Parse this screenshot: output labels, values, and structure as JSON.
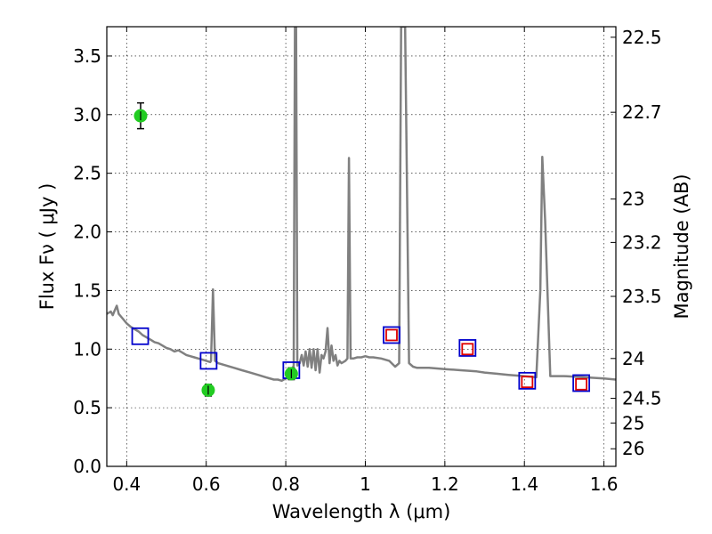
{
  "chart_data": {
    "type": "scatter",
    "xlabel": "Wavelength  λ (μm)",
    "ylabel": "Flux  Fν  ( μJy )",
    "ylabel_right": "Magnitude (AB)",
    "xlim": [
      0.35,
      1.63
    ],
    "ylim": [
      0.0,
      3.75
    ],
    "grid": true,
    "x_ticks": [
      0.4,
      0.6,
      0.8,
      1.0,
      1.2,
      1.4,
      1.6
    ],
    "x_tick_labels": [
      "0.4",
      "0.6",
      "0.8",
      "1",
      "1.2",
      "1.4",
      "1.6"
    ],
    "y_ticks": [
      0.0,
      0.5,
      1.0,
      1.5,
      2.0,
      2.5,
      3.0,
      3.5
    ],
    "y_tick_labels": [
      "0.0",
      "0.5",
      "1.0",
      "1.5",
      "2.0",
      "2.5",
      "3.0",
      "3.5"
    ],
    "right_ticks": [
      {
        "label": "22.5",
        "flux": 3.66
      },
      {
        "label": "22.7",
        "flux": 3.02
      },
      {
        "label": "23",
        "flux": 2.28
      },
      {
        "label": "23.2",
        "flux": 1.91
      },
      {
        "label": "23.5",
        "flux": 1.45
      },
      {
        "label": "24",
        "flux": 0.92
      },
      {
        "label": "24.5",
        "flux": 0.58
      },
      {
        "label": "25",
        "flux": 0.37
      },
      {
        "label": "26",
        "flux": 0.15
      }
    ],
    "series": [
      {
        "kind": "line",
        "color": "#808080",
        "points": [
          [
            0.35,
            1.3
          ],
          [
            0.36,
            1.32
          ],
          [
            0.365,
            1.29
          ],
          [
            0.37,
            1.33
          ],
          [
            0.375,
            1.37
          ],
          [
            0.38,
            1.3
          ],
          [
            0.39,
            1.26
          ],
          [
            0.4,
            1.22
          ],
          [
            0.41,
            1.19
          ],
          [
            0.42,
            1.17
          ],
          [
            0.43,
            1.15
          ],
          [
            0.44,
            1.12
          ],
          [
            0.45,
            1.1
          ],
          [
            0.46,
            1.08
          ],
          [
            0.47,
            1.06
          ],
          [
            0.48,
            1.05
          ],
          [
            0.49,
            1.03
          ],
          [
            0.5,
            1.01
          ],
          [
            0.51,
            1.0
          ],
          [
            0.52,
            0.98
          ],
          [
            0.53,
            0.99
          ],
          [
            0.54,
            0.97
          ],
          [
            0.55,
            0.95
          ],
          [
            0.56,
            0.94
          ],
          [
            0.57,
            0.93
          ],
          [
            0.58,
            0.92
          ],
          [
            0.59,
            0.91
          ],
          [
            0.6,
            0.9
          ],
          [
            0.61,
            0.89
          ],
          [
            0.612,
            0.9
          ],
          [
            0.617,
            1.51
          ],
          [
            0.622,
            0.9
          ],
          [
            0.63,
            0.88
          ],
          [
            0.65,
            0.86
          ],
          [
            0.67,
            0.84
          ],
          [
            0.69,
            0.82
          ],
          [
            0.71,
            0.8
          ],
          [
            0.73,
            0.78
          ],
          [
            0.75,
            0.76
          ],
          [
            0.77,
            0.74
          ],
          [
            0.78,
            0.74
          ],
          [
            0.79,
            0.73
          ],
          [
            0.8,
            0.75
          ],
          [
            0.81,
            0.77
          ],
          [
            0.815,
            0.82
          ],
          [
            0.82,
            0.86
          ],
          [
            0.823,
            3.75
          ],
          [
            0.826,
            3.75
          ],
          [
            0.829,
            0.86
          ],
          [
            0.835,
            0.88
          ],
          [
            0.84,
            0.95
          ],
          [
            0.845,
            0.86
          ],
          [
            0.85,
            0.98
          ],
          [
            0.855,
            0.85
          ],
          [
            0.86,
            1.0
          ],
          [
            0.865,
            0.84
          ],
          [
            0.87,
            1.0
          ],
          [
            0.875,
            0.82
          ],
          [
            0.88,
            1.0
          ],
          [
            0.885,
            0.8
          ],
          [
            0.89,
            0.95
          ],
          [
            0.895,
            0.92
          ],
          [
            0.9,
            0.98
          ],
          [
            0.905,
            1.18
          ],
          [
            0.91,
            0.88
          ],
          [
            0.915,
            1.03
          ],
          [
            0.92,
            0.9
          ],
          [
            0.925,
            0.95
          ],
          [
            0.93,
            0.86
          ],
          [
            0.935,
            0.9
          ],
          [
            0.94,
            0.88
          ],
          [
            0.95,
            0.9
          ],
          [
            0.955,
            0.92
          ],
          [
            0.959,
            2.63
          ],
          [
            0.963,
            0.92
          ],
          [
            0.97,
            0.92
          ],
          [
            0.98,
            0.93
          ],
          [
            0.99,
            0.93
          ],
          [
            1.0,
            0.94
          ],
          [
            1.01,
            0.93
          ],
          [
            1.02,
            0.93
          ],
          [
            1.04,
            0.92
          ],
          [
            1.06,
            0.9
          ],
          [
            1.075,
            0.85
          ],
          [
            1.085,
            0.88
          ],
          [
            1.09,
            3.75
          ],
          [
            1.1,
            3.75
          ],
          [
            1.11,
            0.88
          ],
          [
            1.12,
            0.85
          ],
          [
            1.13,
            0.84
          ],
          [
            1.16,
            0.84
          ],
          [
            1.2,
            0.83
          ],
          [
            1.24,
            0.82
          ],
          [
            1.28,
            0.81
          ],
          [
            1.3,
            0.8
          ],
          [
            1.33,
            0.79
          ],
          [
            1.36,
            0.78
          ],
          [
            1.4,
            0.77
          ],
          [
            1.43,
            0.76
          ],
          [
            1.44,
            1.5
          ],
          [
            1.445,
            2.64
          ],
          [
            1.452,
            2.1
          ],
          [
            1.465,
            0.77
          ],
          [
            1.5,
            0.77
          ],
          [
            1.55,
            0.76
          ],
          [
            1.6,
            0.75
          ],
          [
            1.63,
            0.74
          ]
        ]
      },
      {
        "kind": "open-square",
        "color": "#0000cc",
        "points": [
          [
            0.434,
            1.11
          ],
          [
            0.606,
            0.9
          ],
          [
            0.814,
            0.82
          ],
          [
            1.066,
            1.12
          ],
          [
            1.257,
            1.01
          ],
          [
            1.407,
            0.73
          ],
          [
            1.543,
            0.71
          ]
        ]
      },
      {
        "kind": "open-square",
        "color": "#dd0000",
        "points": [
          [
            1.066,
            1.12
          ],
          [
            1.257,
            1.0
          ],
          [
            1.407,
            0.72
          ],
          [
            1.543,
            0.7
          ]
        ]
      },
      {
        "kind": "filled-circle",
        "color": "#22cc22",
        "points": [
          [
            0.435,
            2.99,
            0.11
          ],
          [
            0.605,
            0.65,
            0.05
          ],
          [
            0.814,
            0.79,
            0.05
          ]
        ]
      }
    ]
  }
}
